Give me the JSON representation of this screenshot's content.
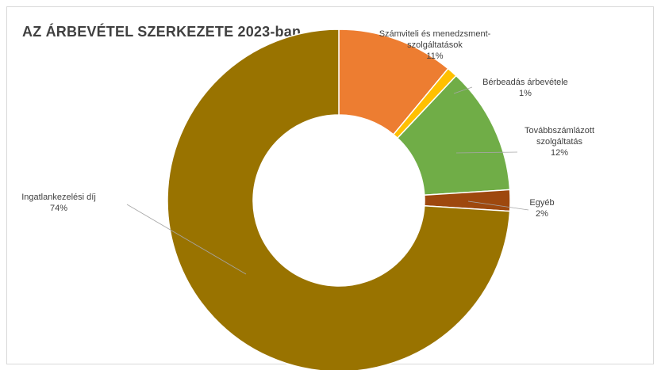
{
  "chart_data": {
    "type": "pie",
    "variant": "doughnut",
    "title": "AZ ÁRBEVÉTEL SZERKEZETE 2023-ban",
    "slices": [
      {
        "label_lines": [
          "Számviteli és menedzsment-",
          "szolgáltatások"
        ],
        "pct_label": "11%",
        "value": 11,
        "color": "#ED7D31"
      },
      {
        "label_lines": [
          "Bérbeadás árbevétele"
        ],
        "pct_label": "1%",
        "value": 1,
        "color": "#FFC000"
      },
      {
        "label_lines": [
          "Továbbszámlázott",
          "szolgáltatás"
        ],
        "pct_label": "12%",
        "value": 12,
        "color": "#70AD47"
      },
      {
        "label_lines": [
          "Egyéb"
        ],
        "pct_label": "2%",
        "value": 2,
        "color": "#9E480E"
      },
      {
        "label_lines": [
          "Ingatlankezelési díj"
        ],
        "pct_label": "74%",
        "value": 74,
        "color": "#997300"
      }
    ],
    "legend": "none",
    "data_labels": "outside-with-leader-lines"
  }
}
